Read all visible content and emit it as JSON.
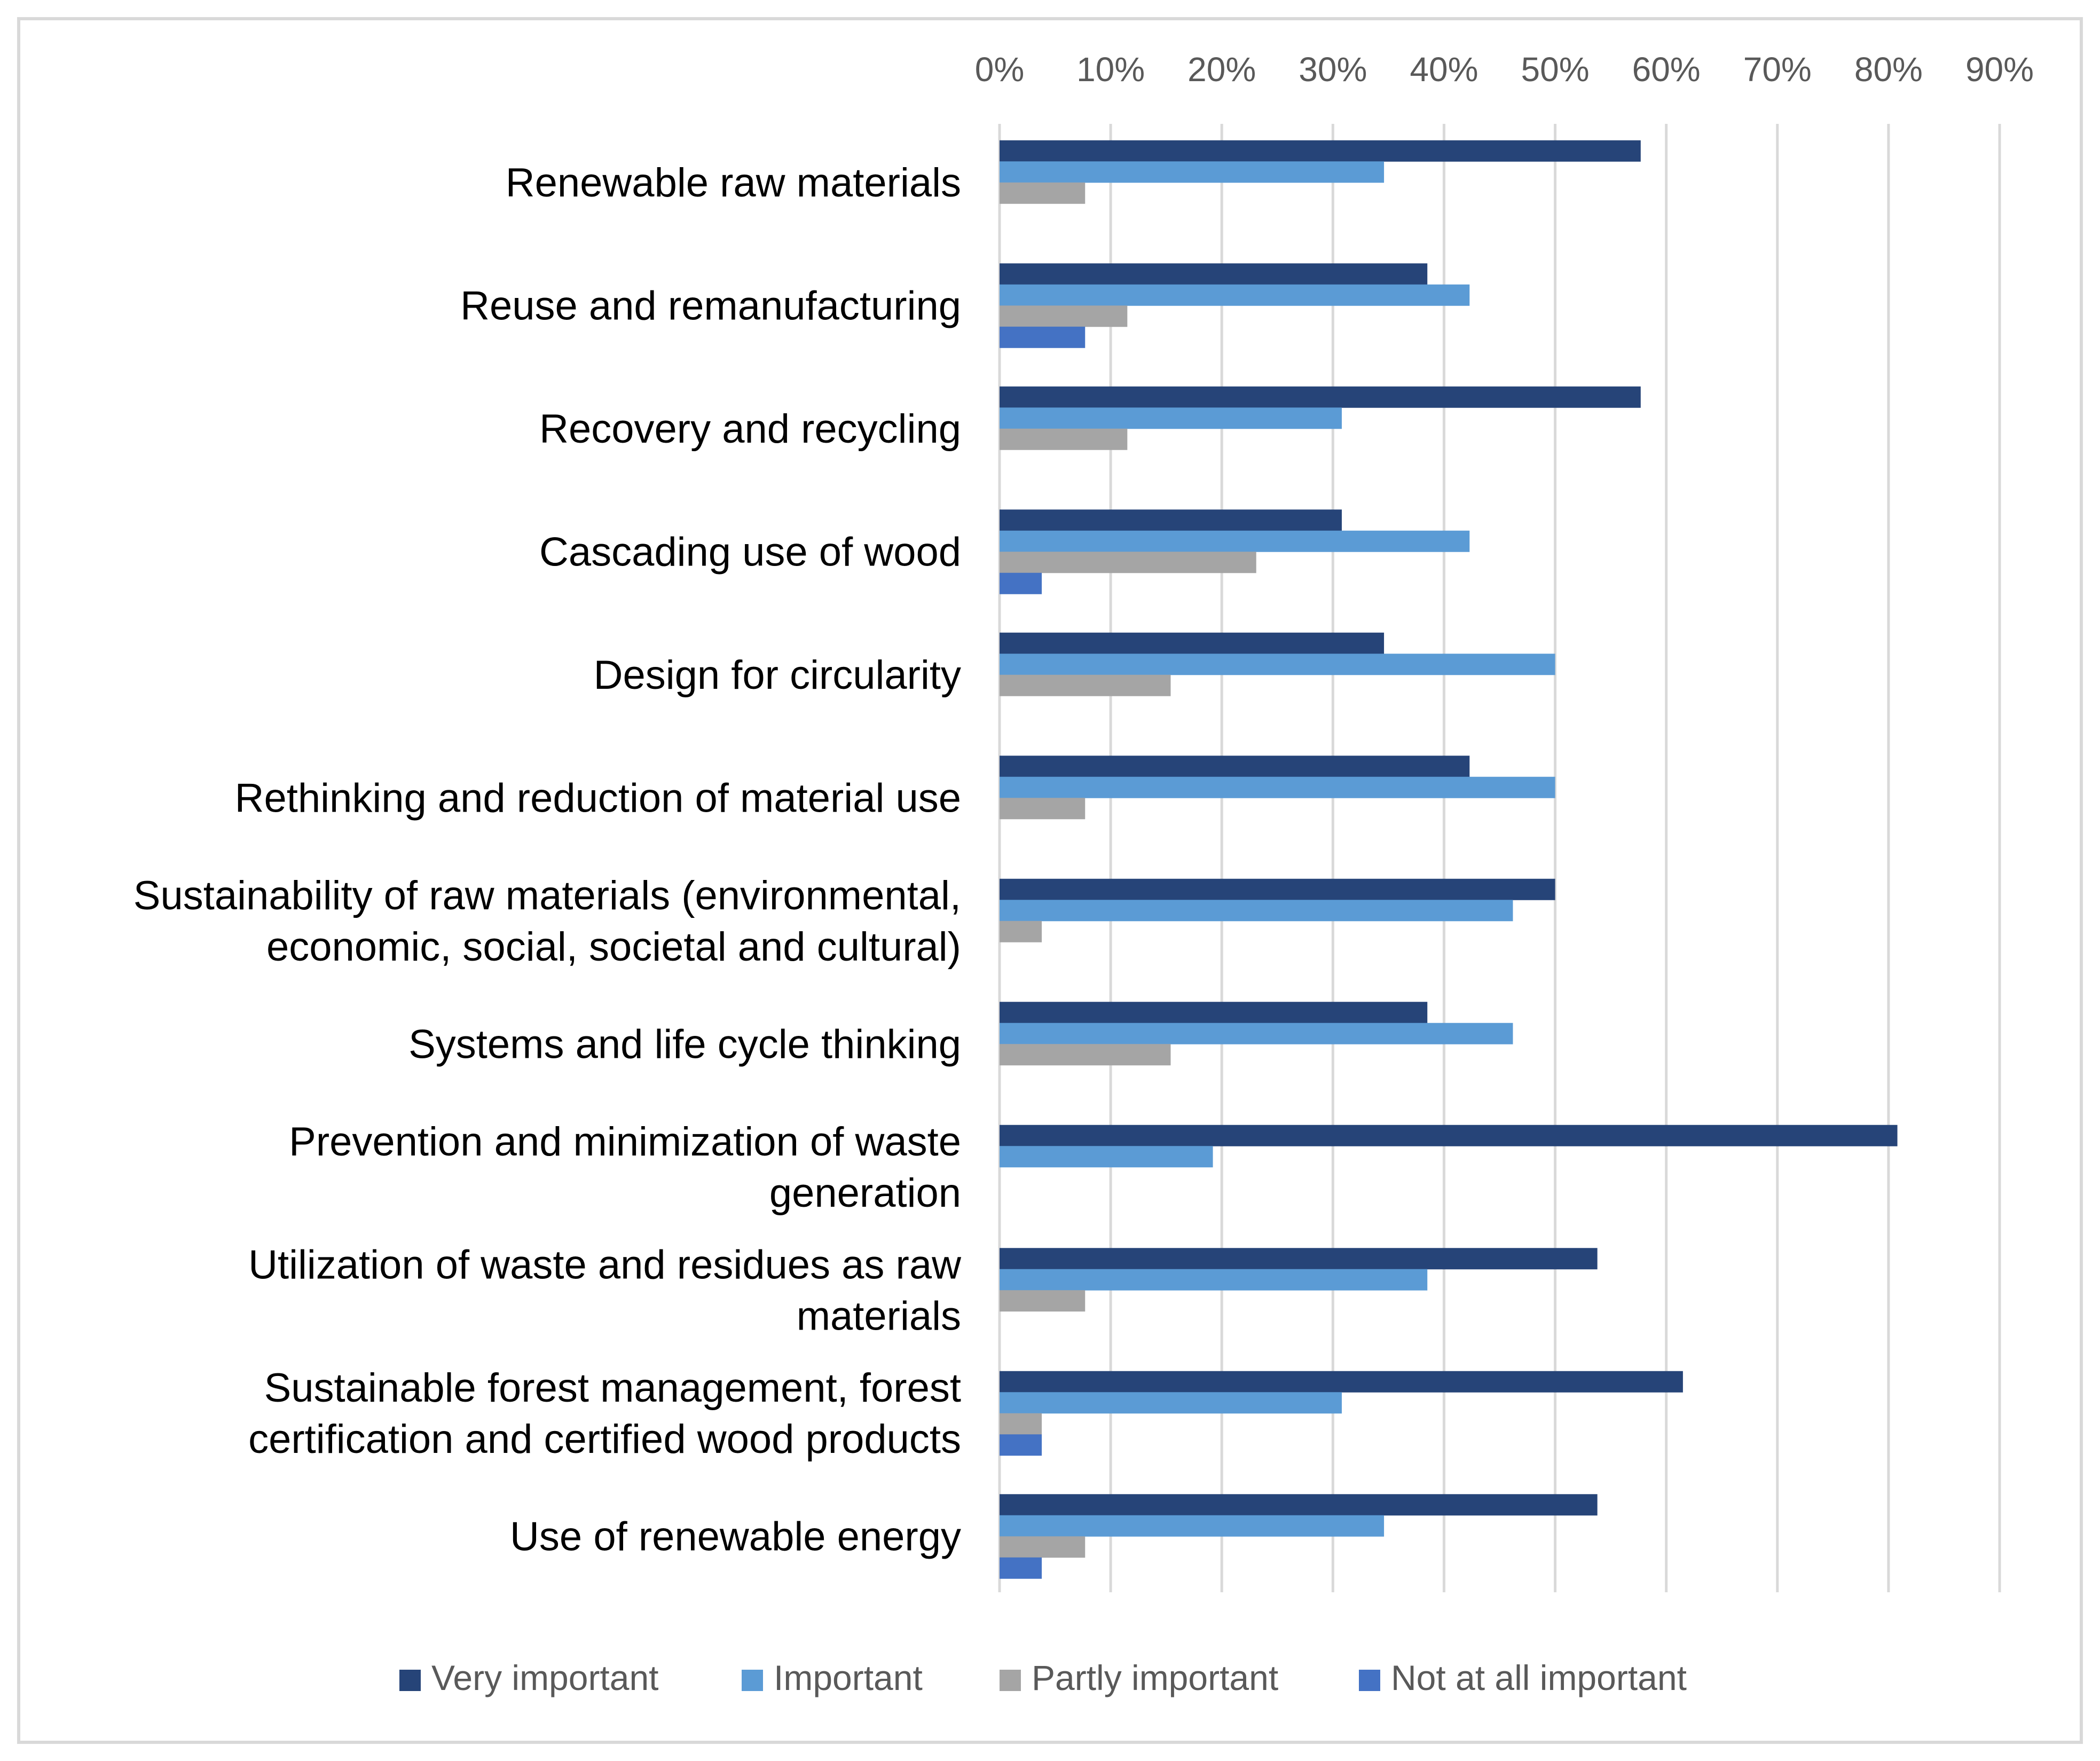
{
  "chart_data": {
    "type": "bar",
    "orientation": "horizontal",
    "title": "",
    "xlabel": "",
    "ylabel": "",
    "xlim": [
      0,
      90
    ],
    "x_ticks": [
      "0%",
      "10%",
      "20%",
      "30%",
      "40%",
      "50%",
      "60%",
      "70%",
      "80%",
      "90%"
    ],
    "grid": true,
    "legend_position": "bottom",
    "categories": [
      [
        "Renewable raw materials"
      ],
      [
        "Reuse and remanufacturing"
      ],
      [
        "Recovery and recycling"
      ],
      [
        "Cascading use of wood"
      ],
      [
        "Design for circularity"
      ],
      [
        "Rethinking and reduction of material use"
      ],
      [
        "Sustainability of raw materials (environmental,",
        "economic, social, societal and cultural)"
      ],
      [
        "Systems and life cycle thinking"
      ],
      [
        "Prevention and minimization of waste",
        "generation"
      ],
      [
        "Utilization of waste and residues as raw",
        "materials"
      ],
      [
        "Sustainable forest management, forest",
        "certification and certified wood products"
      ],
      [
        "Use of renewable energy"
      ]
    ],
    "series": [
      {
        "name": "Very important",
        "color": "#264478",
        "values": [
          57.7,
          38.5,
          57.7,
          30.8,
          34.6,
          42.3,
          50.0,
          38.5,
          80.8,
          53.8,
          61.5,
          53.8
        ]
      },
      {
        "name": "Important",
        "color": "#5b9bd5",
        "values": [
          34.6,
          42.3,
          30.8,
          42.3,
          50.0,
          50.0,
          46.2,
          46.2,
          19.2,
          38.5,
          30.8,
          34.6
        ]
      },
      {
        "name": "Partly important",
        "color": "#a5a5a5",
        "values": [
          7.7,
          11.5,
          11.5,
          23.1,
          15.4,
          7.7,
          3.8,
          15.4,
          0,
          7.7,
          3.8,
          7.7
        ]
      },
      {
        "name": "Not at all important",
        "color": "#4472c4",
        "values": [
          0,
          7.7,
          0,
          3.8,
          0,
          0,
          0,
          0,
          0,
          0,
          3.8,
          3.8
        ]
      }
    ]
  }
}
